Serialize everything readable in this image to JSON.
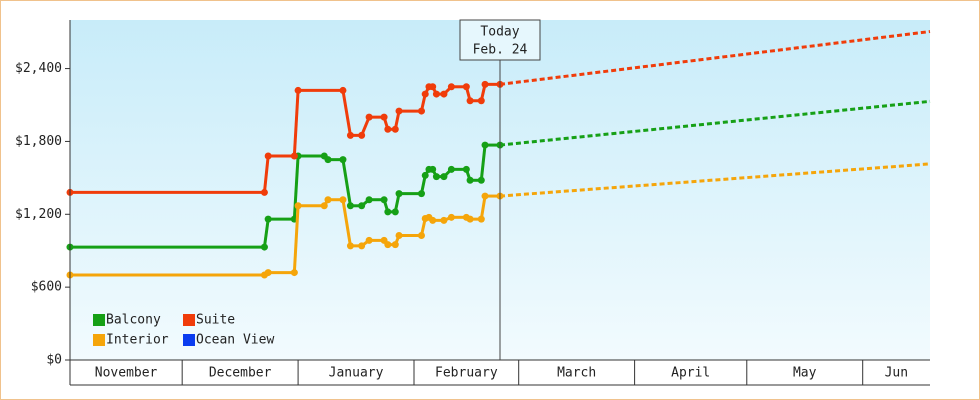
{
  "chart_data": {
    "type": "line",
    "today": {
      "label": "Today",
      "date": "Feb. 24",
      "x": 115
    },
    "xlim": [
      0,
      230
    ],
    "xticks": [
      {
        "value": 0,
        "label": "November"
      },
      {
        "value": 30,
        "label": "December"
      },
      {
        "value": 61,
        "label": "January"
      },
      {
        "value": 92,
        "label": "February"
      },
      {
        "value": 120,
        "label": "March"
      },
      {
        "value": 151,
        "label": "April"
      },
      {
        "value": 181,
        "label": "May"
      },
      {
        "value": 212,
        "label": "Jun"
      }
    ],
    "ylim": [
      0,
      2800
    ],
    "yticks": [
      {
        "value": 0,
        "label": "$0"
      },
      {
        "value": 600,
        "label": "$600"
      },
      {
        "value": 1200,
        "label": "$1,200"
      },
      {
        "value": 1800,
        "label": "$1,800"
      },
      {
        "value": 2400,
        "label": "$2,400"
      }
    ],
    "series": [
      {
        "name": "Balcony",
        "color": "#16a016",
        "x": [
          0,
          52,
          53,
          60,
          61,
          68,
          69,
          73,
          75,
          78,
          80,
          84,
          85,
          87,
          88,
          94,
          95,
          96,
          97,
          98,
          100,
          102,
          106,
          107,
          110,
          111,
          115,
          230
        ],
        "values": [
          930,
          930,
          1160,
          1160,
          1680,
          1680,
          1650,
          1650,
          1270,
          1270,
          1320,
          1320,
          1220,
          1220,
          1370,
          1370,
          1520,
          1570,
          1570,
          1510,
          1510,
          1570,
          1570,
          1480,
          1480,
          1770,
          1770,
          2130
        ]
      },
      {
        "name": "Suite",
        "color": "#f03c0a",
        "x": [
          0,
          52,
          53,
          60,
          61,
          73,
          75,
          78,
          80,
          84,
          85,
          87,
          88,
          94,
          95,
          96,
          97,
          98,
          100,
          102,
          106,
          107,
          110,
          111,
          115,
          230
        ],
        "values": [
          1380,
          1380,
          1680,
          1680,
          2220,
          2220,
          1850,
          1850,
          2000,
          2000,
          1900,
          1900,
          2050,
          2050,
          2190,
          2250,
          2250,
          2190,
          2190,
          2250,
          2250,
          2135,
          2135,
          2270,
          2270,
          2705
        ]
      },
      {
        "name": "Interior",
        "color": "#f5a50a",
        "x": [
          0,
          52,
          53,
          60,
          61,
          68,
          69,
          73,
          75,
          78,
          80,
          84,
          85,
          87,
          88,
          94,
          95,
          96,
          97,
          100,
          102,
          106,
          107,
          110,
          111,
          115,
          230
        ],
        "values": [
          700,
          700,
          720,
          720,
          1270,
          1270,
          1320,
          1320,
          940,
          940,
          985,
          985,
          950,
          950,
          1025,
          1025,
          1165,
          1175,
          1150,
          1150,
          1175,
          1175,
          1160,
          1160,
          1350,
          1350,
          1615
        ]
      },
      {
        "name": "Ocean View",
        "color": "#0a3cf0",
        "x": [],
        "values": []
      }
    ]
  }
}
